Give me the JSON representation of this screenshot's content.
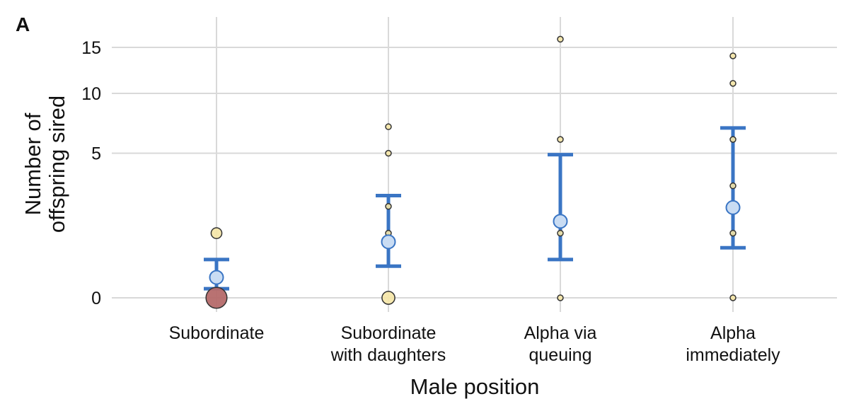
{
  "panel_label": "A",
  "colors": {
    "grid": "#d9d9d9",
    "errorbar": "#3a75c4",
    "mean_fill": "#c9dcf3",
    "point_fill": "#f5e6a6",
    "point_stroke": "#333333",
    "highlight_fill": "#b56a6a"
  },
  "chart_data": {
    "type": "scatter",
    "title": "",
    "xlabel": "Male position",
    "ylabel_lines": [
      "Number of",
      "offspring sired"
    ],
    "y_scale": "sqrt",
    "ylim": [
      0,
      17
    ],
    "yticks": [
      0,
      5,
      10,
      15
    ],
    "grid": true,
    "categories": [
      {
        "label_lines": [
          "Subordinate"
        ]
      },
      {
        "label_lines": [
          "Subordinate",
          "with daughters"
        ]
      },
      {
        "label_lines": [
          "Alpha via",
          "queuing"
        ]
      },
      {
        "label_lines": [
          "Alpha",
          "immediately"
        ]
      }
    ],
    "points": [
      {
        "cat": 0,
        "y": 0,
        "n": 10,
        "highlight": true
      },
      {
        "cat": 0,
        "y": 1,
        "n": 2
      },
      {
        "cat": 1,
        "y": 0,
        "n": 3
      },
      {
        "cat": 1,
        "y": 1,
        "n": 1
      },
      {
        "cat": 1,
        "y": 2,
        "n": 1
      },
      {
        "cat": 1,
        "y": 5,
        "n": 1
      },
      {
        "cat": 1,
        "y": 7,
        "n": 1
      },
      {
        "cat": 2,
        "y": 0,
        "n": 1
      },
      {
        "cat": 2,
        "y": 1,
        "n": 1
      },
      {
        "cat": 2,
        "y": 6,
        "n": 1
      },
      {
        "cat": 2,
        "y": 16,
        "n": 1
      },
      {
        "cat": 3,
        "y": 0,
        "n": 1
      },
      {
        "cat": 3,
        "y": 1,
        "n": 1
      },
      {
        "cat": 3,
        "y": 3,
        "n": 1
      },
      {
        "cat": 3,
        "y": 6,
        "n": 1
      },
      {
        "cat": 3,
        "y": 11,
        "n": 1
      },
      {
        "cat": 3,
        "y": 14,
        "n": 1
      }
    ],
    "means": [
      {
        "cat": 0,
        "mean": 0.1,
        "lower": 0.02,
        "upper": 0.35
      },
      {
        "cat": 1,
        "mean": 0.75,
        "lower": 0.24,
        "upper": 2.5
      },
      {
        "cat": 2,
        "mean": 1.4,
        "lower": 0.35,
        "upper": 4.9
      },
      {
        "cat": 3,
        "mean": 1.95,
        "lower": 0.6,
        "upper": 6.9
      }
    ]
  }
}
